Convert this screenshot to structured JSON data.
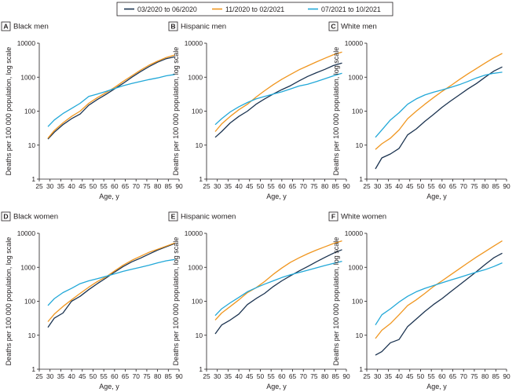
{
  "legend": {
    "items": [
      {
        "label": "03/2020 to 06/2020",
        "color": "#1b3350"
      },
      {
        "label": "11/2020 to 02/2021",
        "color": "#f0961f"
      },
      {
        "label": "07/2021 to 10/2021",
        "color": "#22a8d8"
      }
    ]
  },
  "chart_data": [
    {
      "type": "line",
      "panel": "A",
      "title": "Black men",
      "xlabel": "Age, y",
      "ylabel": "Deaths per 100 000 population, log scale",
      "xlim": [
        25,
        90
      ],
      "xticks": [
        25,
        30,
        35,
        40,
        45,
        50,
        55,
        60,
        65,
        70,
        75,
        80,
        85,
        90
      ],
      "ylim": [
        1,
        10000
      ],
      "yscale": "log",
      "yticks": [
        "1",
        "10",
        "100",
        "1000",
        "10000"
      ],
      "x": [
        29,
        32,
        36,
        40,
        44,
        48,
        52,
        56,
        60,
        64,
        68,
        72,
        76,
        80,
        84,
        88
      ],
      "series": [
        {
          "name": "03/2020 to 06/2020",
          "values": [
            15,
            24,
            40,
            60,
            82,
            150,
            220,
            310,
            450,
            660,
            1000,
            1450,
            2050,
            2750,
            3500,
            4000
          ]
        },
        {
          "name": "11/2020 to 02/2021",
          "values": [
            16,
            27,
            45,
            70,
            100,
            170,
            250,
            350,
            500,
            750,
            1100,
            1600,
            2250,
            2950,
            3800,
            4500
          ]
        },
        {
          "name": "07/2021 to 10/2021",
          "values": [
            35,
            55,
            85,
            120,
            170,
            270,
            320,
            380,
            460,
            560,
            650,
            750,
            850,
            950,
            1100,
            1200
          ]
        }
      ]
    },
    {
      "type": "line",
      "panel": "B",
      "title": "Hispanic men",
      "xlabel": "Age, y",
      "ylabel": "Deaths per 100 000 population, log scale",
      "xlim": [
        25,
        90
      ],
      "xticks": [
        25,
        30,
        35,
        40,
        45,
        50,
        55,
        60,
        65,
        70,
        75,
        80,
        85,
        90
      ],
      "ylim": [
        1,
        10000
      ],
      "yscale": "log",
      "yticks": [
        "1",
        "10",
        "100",
        "1000",
        "10000"
      ],
      "x": [
        29,
        32,
        36,
        40,
        44,
        48,
        52,
        56,
        60,
        64,
        68,
        72,
        76,
        80,
        84,
        88
      ],
      "series": [
        {
          "name": "03/2020 to 06/2020",
          "values": [
            17,
            25,
            45,
            70,
            100,
            160,
            230,
            320,
            430,
            560,
            780,
            1050,
            1350,
            1700,
            2200,
            2600
          ]
        },
        {
          "name": "11/2020 to 02/2021",
          "values": [
            25,
            42,
            70,
            110,
            160,
            260,
            400,
            600,
            870,
            1200,
            1650,
            2150,
            2800,
            3600,
            4600,
            5500
          ]
        },
        {
          "name": "07/2021 to 10/2021",
          "values": [
            40,
            60,
            95,
            135,
            180,
            230,
            270,
            320,
            370,
            450,
            550,
            620,
            740,
            900,
            1100,
            1300
          ]
        }
      ]
    },
    {
      "type": "line",
      "panel": "C",
      "title": "White men",
      "xlabel": "Age, y",
      "ylabel": "Deaths per 100 000 population, log scale",
      "xlim": [
        25,
        90
      ],
      "xticks": [
        25,
        30,
        35,
        40,
        45,
        50,
        55,
        60,
        65,
        70,
        75,
        80,
        85,
        90
      ],
      "ylim": [
        1,
        10000
      ],
      "yscale": "log",
      "yticks": [
        "1",
        "10",
        "100",
        "1000",
        "10000"
      ],
      "x": [
        29,
        32,
        36,
        40,
        44,
        48,
        52,
        56,
        60,
        64,
        68,
        72,
        76,
        80,
        84,
        88
      ],
      "series": [
        {
          "name": "03/2020 to 06/2020",
          "values": [
            2,
            4.2,
            5.5,
            8,
            20,
            30,
            50,
            80,
            130,
            200,
            300,
            450,
            650,
            1000,
            1500,
            2000
          ]
        },
        {
          "name": "11/2020 to 02/2021",
          "values": [
            7.5,
            11,
            16,
            28,
            60,
            100,
            160,
            250,
            380,
            560,
            850,
            1250,
            1800,
            2600,
            3700,
            5000
          ]
        },
        {
          "name": "07/2021 to 10/2021",
          "values": [
            17,
            28,
            55,
            90,
            160,
            230,
            300,
            360,
            420,
            500,
            600,
            750,
            950,
            1150,
            1300,
            1400
          ]
        }
      ]
    },
    {
      "type": "line",
      "panel": "D",
      "title": "Black women",
      "xlabel": "Age, y",
      "ylabel": "Deaths per 100 000 population, log scale",
      "xlim": [
        25,
        90
      ],
      "xticks": [
        25,
        30,
        35,
        40,
        45,
        50,
        55,
        60,
        65,
        70,
        75,
        80,
        85,
        90
      ],
      "ylim": [
        1,
        10000
      ],
      "yscale": "log",
      "yticks": [
        "1",
        "10",
        "100",
        "1000",
        "10000"
      ],
      "x": [
        29,
        32,
        36,
        40,
        44,
        48,
        52,
        56,
        60,
        64,
        68,
        72,
        76,
        80,
        84,
        88
      ],
      "series": [
        {
          "name": "03/2020 to 06/2020",
          "values": [
            17,
            32,
            45,
            100,
            140,
            220,
            330,
            480,
            720,
            1050,
            1450,
            1850,
            2450,
            3200,
            4000,
            5000
          ]
        },
        {
          "name": "11/2020 to 02/2021",
          "values": [
            25,
            42,
            70,
            110,
            170,
            260,
            380,
            520,
            780,
            1150,
            1600,
            2100,
            2750,
            3400,
            4200,
            5200
          ]
        },
        {
          "name": "07/2021 to 10/2021",
          "values": [
            75,
            120,
            180,
            240,
            330,
            400,
            460,
            540,
            640,
            760,
            880,
            1000,
            1150,
            1350,
            1550,
            1700
          ]
        }
      ]
    },
    {
      "type": "line",
      "panel": "E",
      "title": "Hispanic women",
      "xlabel": "Age, y",
      "ylabel": "Deaths per 100 000 population, log scale",
      "xlim": [
        25,
        90
      ],
      "xticks": [
        25,
        30,
        35,
        40,
        45,
        50,
        55,
        60,
        65,
        70,
        75,
        80,
        85,
        90
      ],
      "ylim": [
        1,
        10000
      ],
      "yscale": "log",
      "yticks": [
        "1",
        "10",
        "100",
        "1000",
        "10000"
      ],
      "x": [
        29,
        32,
        36,
        40,
        44,
        48,
        52,
        56,
        60,
        64,
        68,
        72,
        76,
        80,
        84,
        88
      ],
      "series": [
        {
          "name": "03/2020 to 06/2020",
          "values": [
            11,
            20,
            28,
            42,
            80,
            120,
            170,
            270,
            400,
            560,
            780,
            1050,
            1450,
            1950,
            2600,
            3300
          ]
        },
        {
          "name": "11/2020 to 02/2021",
          "values": [
            28,
            45,
            70,
            110,
            180,
            250,
            380,
            620,
            950,
            1400,
            1900,
            2500,
            3200,
            4000,
            5000,
            6000
          ]
        },
        {
          "name": "07/2021 to 10/2021",
          "values": [
            38,
            60,
            90,
            130,
            190,
            250,
            320,
            400,
            500,
            600,
            700,
            820,
            960,
            1130,
            1300,
            1500
          ]
        }
      ]
    },
    {
      "type": "line",
      "panel": "F",
      "title": "White women",
      "xlabel": "Age, y",
      "ylabel": "Deaths per 100 000 population, log scale",
      "xlim": [
        25,
        90
      ],
      "xticks": [
        25,
        30,
        35,
        40,
        45,
        50,
        55,
        60,
        65,
        70,
        75,
        80,
        85,
        90
      ],
      "ylim": [
        1,
        10000
      ],
      "yscale": "log",
      "yticks": [
        "1",
        "10",
        "100",
        "1000",
        "10000"
      ],
      "x": [
        29,
        32,
        36,
        40,
        44,
        48,
        52,
        56,
        60,
        64,
        68,
        72,
        76,
        80,
        84,
        88
      ],
      "series": [
        {
          "name": "03/2020 to 06/2020",
          "values": [
            2.6,
            3.3,
            6,
            7.5,
            18,
            30,
            50,
            80,
            120,
            190,
            300,
            470,
            750,
            1200,
            1900,
            2600
          ]
        },
        {
          "name": "11/2020 to 02/2021",
          "values": [
            8,
            14,
            22,
            40,
            75,
            110,
            170,
            270,
            400,
            600,
            900,
            1350,
            2000,
            2900,
            4200,
            6000
          ]
        },
        {
          "name": "07/2021 to 10/2021",
          "values": [
            20,
            40,
            60,
            95,
            140,
            190,
            240,
            290,
            350,
            420,
            500,
            600,
            720,
            850,
            1050,
            1350
          ]
        }
      ]
    }
  ]
}
